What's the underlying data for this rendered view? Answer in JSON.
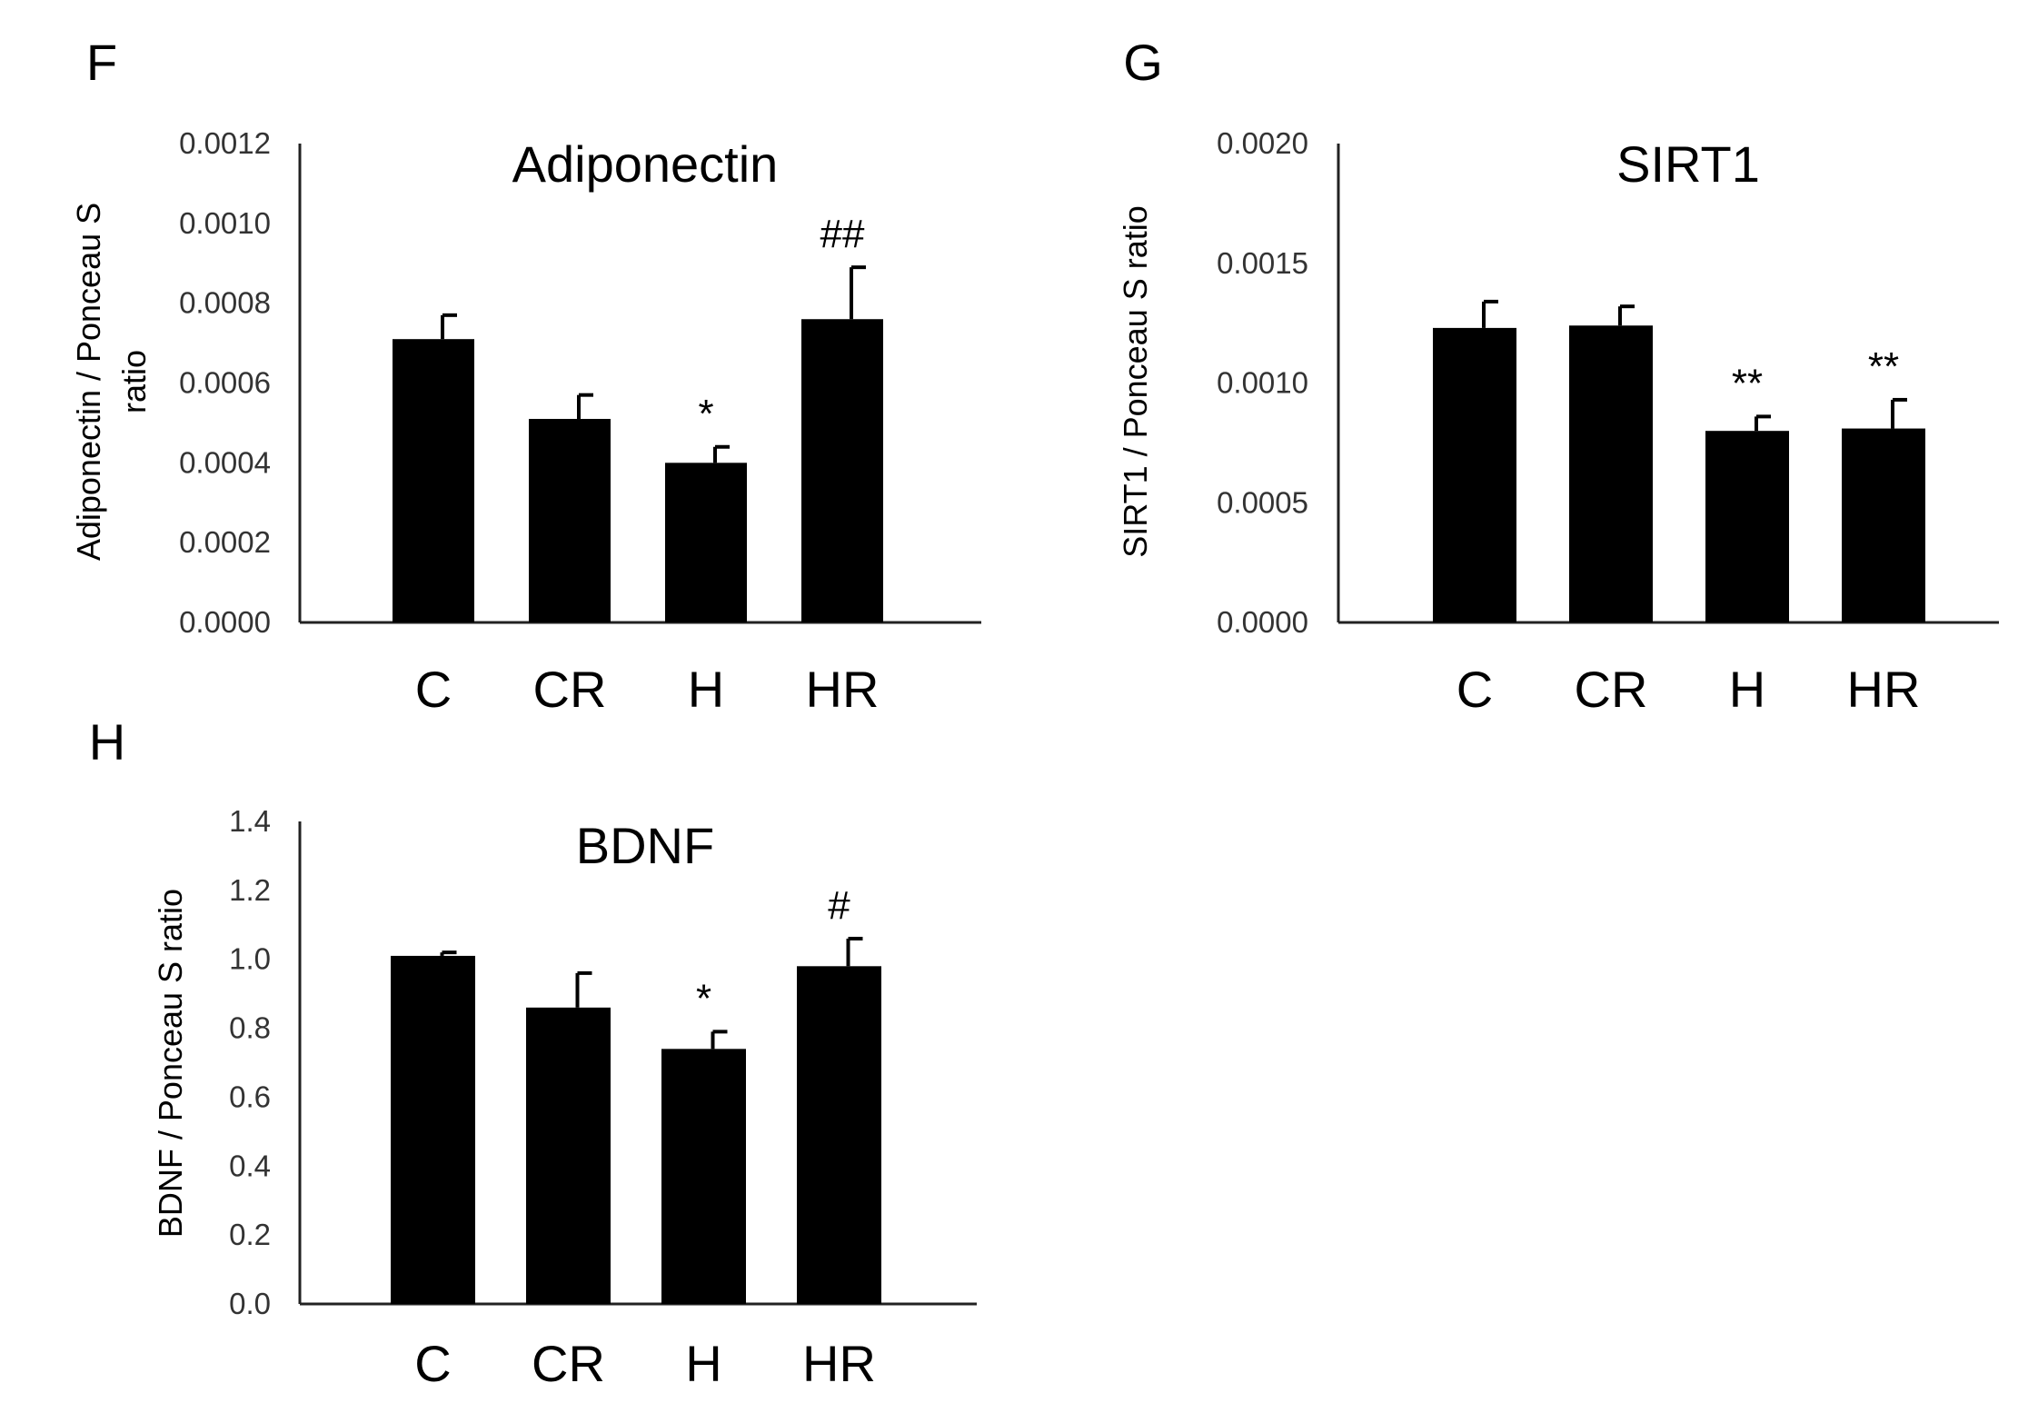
{
  "chart_data": [
    {
      "panel": "F",
      "type": "bar",
      "title": "Adiponectin",
      "ylabel": [
        "Adiponectin / Ponceau S",
        "ratio"
      ],
      "categories": [
        "C",
        "CR",
        "H",
        "HR"
      ],
      "values": [
        0.00071,
        0.00051,
        0.0004,
        0.00076
      ],
      "errors": [
        6e-05,
        6e-05,
        4e-05,
        0.00013
      ],
      "annotations": [
        "",
        "",
        "*",
        "##"
      ],
      "ylim": [
        0,
        0.0012
      ],
      "yticks": [
        "0.0000",
        "0.0002",
        "0.0004",
        "0.0006",
        "0.0008",
        "0.0010",
        "0.0012"
      ],
      "color": "#000000",
      "legend": "none",
      "grid": false
    },
    {
      "panel": "G",
      "type": "bar",
      "title": "SIRT1",
      "ylabel": [
        "SIRT1 / Ponceau S ratio"
      ],
      "categories": [
        "C",
        "CR",
        "H",
        "HR"
      ],
      "values": [
        0.00123,
        0.00124,
        0.0008,
        0.00081
      ],
      "errors": [
        0.00011,
        8e-05,
        6e-05,
        0.00012
      ],
      "annotations": [
        "",
        "",
        "**",
        "**"
      ],
      "ylim": [
        0,
        0.002
      ],
      "yticks": [
        "0.0000",
        "0.0005",
        "0.0010",
        "0.0015",
        "0.0020"
      ],
      "color": "#000000",
      "legend": "none",
      "grid": false
    },
    {
      "panel": "H",
      "type": "bar",
      "title": "BDNF",
      "ylabel": [
        "BDNF / Ponceau S ratio"
      ],
      "categories": [
        "C",
        "CR",
        "H",
        "HR"
      ],
      "values": [
        1.01,
        0.86,
        0.74,
        0.98
      ],
      "errors": [
        0.01,
        0.1,
        0.05,
        0.08
      ],
      "annotations": [
        "",
        "",
        "*",
        "#"
      ],
      "ylim": [
        0,
        1.4
      ],
      "yticks": [
        "0.0",
        "0.2",
        "0.4",
        "0.6",
        "0.8",
        "1.0",
        "1.2",
        "1.4"
      ],
      "color": "#000000",
      "legend": "none",
      "grid": false
    }
  ]
}
